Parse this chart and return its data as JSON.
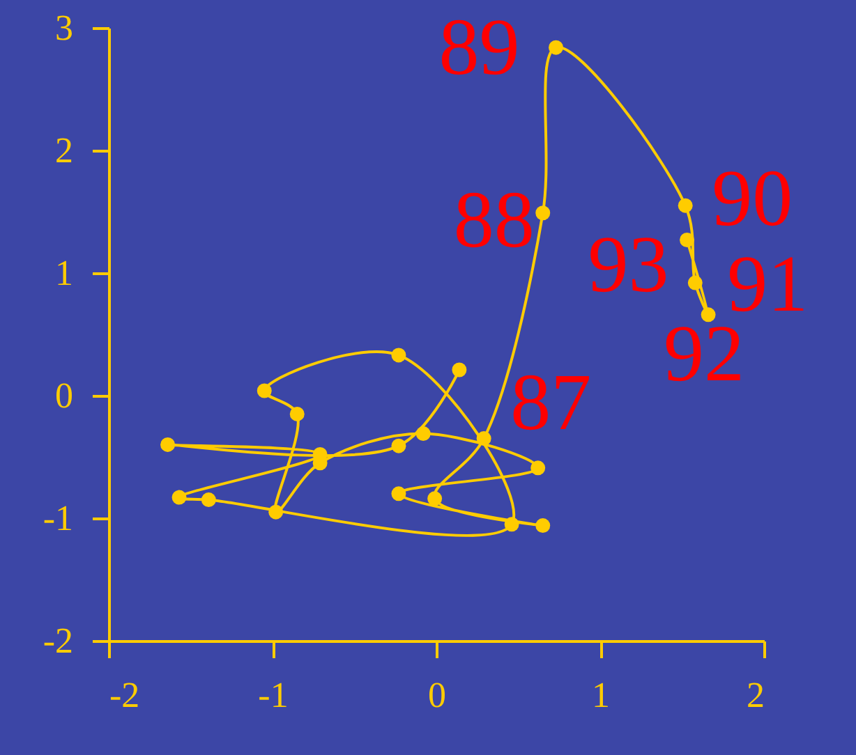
{
  "chart_data": {
    "type": "line",
    "marker": "circle",
    "line_style": "solid",
    "grid": false,
    "series": [
      {
        "color": "#ffcc00",
        "x": [
          0.14,
          -0.23,
          -1.64,
          -0.71,
          -1.57,
          -1.39,
          0.46,
          -0.23,
          -1.05,
          -0.85,
          -0.98,
          -0.71,
          -0.08,
          0.62,
          -0.23,
          0.65,
          -0.01,
          0.29,
          0.65,
          0.73,
          1.52,
          1.58,
          1.66,
          1.53
        ],
        "values": [
          0.21,
          -0.41,
          -0.4,
          -0.48,
          -0.83,
          -0.85,
          -1.05,
          0.33,
          0.04,
          -0.15,
          -0.95,
          -0.55,
          -0.31,
          -0.59,
          -0.8,
          -1.06,
          -0.84,
          -0.35,
          1.49,
          2.84,
          1.55,
          0.92,
          0.66,
          1.27
        ]
      }
    ],
    "xlim": [
      -2,
      2
    ],
    "xticks": [
      -2,
      -1,
      0,
      1,
      2
    ],
    "ylim": [
      -2,
      3
    ],
    "yticks": [
      -2,
      -1,
      0,
      1,
      2,
      3
    ],
    "annotations": [
      {
        "text": "87",
        "x": 0.29,
        "y": -0.35
      },
      {
        "text": "88",
        "x": 0.65,
        "y": 1.49
      },
      {
        "text": "89",
        "x": 0.73,
        "y": 2.84
      },
      {
        "text": "90",
        "x": 1.52,
        "y": 1.55
      },
      {
        "text": "91",
        "x": 1.58,
        "y": 0.92
      },
      {
        "text": "92",
        "x": 1.66,
        "y": 0.66
      },
      {
        "text": "93",
        "x": 1.53,
        "y": 1.27
      }
    ]
  }
}
